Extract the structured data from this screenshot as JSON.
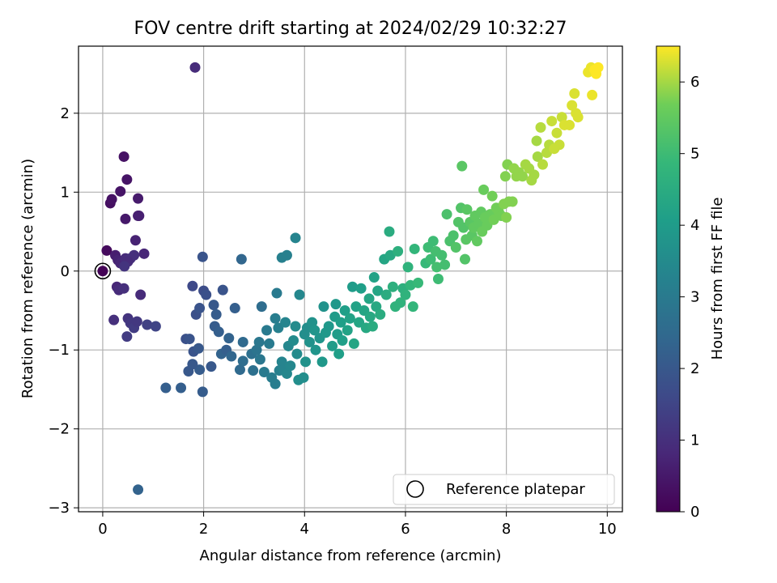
{
  "chart_data": {
    "type": "scatter",
    "title": "FOV centre drift starting at 2024/02/29 10:32:27",
    "xlabel": "Angular distance from reference (arcmin)",
    "ylabel": "Rotation from reference (arcmin)",
    "xlim": [
      -0.48,
      10.3
    ],
    "ylim": [
      -3.05,
      2.85
    ],
    "xticks": [
      0,
      2,
      4,
      6,
      8,
      10
    ],
    "yticks": [
      -3,
      -2,
      -1,
      0,
      1,
      2
    ],
    "grid": true,
    "colormap": "viridis",
    "colorbar": {
      "label": "Hours from first FF file",
      "range": [
        0,
        6.5
      ],
      "ticks": [
        0,
        1,
        2,
        3,
        4,
        5,
        6
      ]
    },
    "legend": {
      "position": "lower-right",
      "entries": [
        "Reference platepar"
      ]
    },
    "reference_point": {
      "x": 0,
      "y": 0
    },
    "points": [
      {
        "x": 0.0,
        "y": 0.0,
        "c": 0.05
      },
      {
        "x": 0.08,
        "y": 0.26,
        "c": 0.2
      },
      {
        "x": 0.15,
        "y": 0.86,
        "c": 0.3
      },
      {
        "x": 0.18,
        "y": 0.91,
        "c": 0.35
      },
      {
        "x": 0.35,
        "y": 1.01,
        "c": 0.4
      },
      {
        "x": 0.42,
        "y": 1.45,
        "c": 0.35
      },
      {
        "x": 0.48,
        "y": 1.16,
        "c": 0.4
      },
      {
        "x": 0.45,
        "y": 0.66,
        "c": 0.5
      },
      {
        "x": 0.7,
        "y": 0.92,
        "c": 0.55
      },
      {
        "x": 0.7,
        "y": 0.7,
        "c": 0.6
      },
      {
        "x": 0.72,
        "y": 0.7,
        "c": 0.65
      },
      {
        "x": 0.65,
        "y": 0.39,
        "c": 0.7
      },
      {
        "x": 0.82,
        "y": 0.22,
        "c": 0.8
      },
      {
        "x": 0.25,
        "y": 0.2,
        "c": 0.6
      },
      {
        "x": 0.3,
        "y": 0.14,
        "c": 0.7
      },
      {
        "x": 0.35,
        "y": 0.1,
        "c": 0.8
      },
      {
        "x": 0.45,
        "y": 0.16,
        "c": 0.9
      },
      {
        "x": 0.55,
        "y": 0.16,
        "c": 1.0
      },
      {
        "x": 0.62,
        "y": 0.2,
        "c": 1.0
      },
      {
        "x": 0.5,
        "y": 0.12,
        "c": 0.9
      },
      {
        "x": 0.43,
        "y": 0.06,
        "c": 1.1
      },
      {
        "x": 0.28,
        "y": -0.2,
        "c": 0.8
      },
      {
        "x": 0.32,
        "y": -0.24,
        "c": 0.9
      },
      {
        "x": 0.42,
        "y": -0.22,
        "c": 1.0
      },
      {
        "x": 0.75,
        "y": -0.3,
        "c": 0.9
      },
      {
        "x": 0.22,
        "y": -0.62,
        "c": 1.0
      },
      {
        "x": 0.5,
        "y": -0.6,
        "c": 1.1
      },
      {
        "x": 0.55,
        "y": -0.66,
        "c": 1.2
      },
      {
        "x": 0.62,
        "y": -0.72,
        "c": 1.3
      },
      {
        "x": 0.68,
        "y": -0.64,
        "c": 1.2
      },
      {
        "x": 0.48,
        "y": -0.83,
        "c": 1.3
      },
      {
        "x": 0.88,
        "y": -0.68,
        "c": 1.4
      },
      {
        "x": 1.05,
        "y": -0.7,
        "c": 1.5
      },
      {
        "x": 1.83,
        "y": 2.58,
        "c": 0.9
      },
      {
        "x": 0.7,
        "y": -2.77,
        "c": 2.3
      },
      {
        "x": 1.25,
        "y": -1.48,
        "c": 2.2
      },
      {
        "x": 1.55,
        "y": -1.48,
        "c": 2.2
      },
      {
        "x": 1.7,
        "y": -1.27,
        "c": 2.0
      },
      {
        "x": 1.65,
        "y": -0.86,
        "c": 1.8
      },
      {
        "x": 1.72,
        "y": -0.86,
        "c": 1.9
      },
      {
        "x": 1.8,
        "y": -1.02,
        "c": 1.9
      },
      {
        "x": 1.9,
        "y": -0.98,
        "c": 2.0
      },
      {
        "x": 1.92,
        "y": -1.25,
        "c": 2.1
      },
      {
        "x": 1.78,
        "y": -1.18,
        "c": 2.0
      },
      {
        "x": 1.85,
        "y": -0.55,
        "c": 1.8
      },
      {
        "x": 1.92,
        "y": -0.47,
        "c": 1.9
      },
      {
        "x": 1.98,
        "y": -1.53,
        "c": 2.1
      },
      {
        "x": 2.0,
        "y": -0.25,
        "c": 1.7
      },
      {
        "x": 1.78,
        "y": -0.19,
        "c": 1.6
      },
      {
        "x": 2.05,
        "y": -0.3,
        "c": 1.8
      },
      {
        "x": 2.15,
        "y": -1.21,
        "c": 2.0
      },
      {
        "x": 2.2,
        "y": -0.43,
        "c": 2.0
      },
      {
        "x": 2.25,
        "y": -0.55,
        "c": 2.1
      },
      {
        "x": 2.22,
        "y": -0.7,
        "c": 2.1
      },
      {
        "x": 2.3,
        "y": -0.77,
        "c": 2.2
      },
      {
        "x": 2.35,
        "y": -1.05,
        "c": 2.3
      },
      {
        "x": 2.45,
        "y": -1.0,
        "c": 2.2
      },
      {
        "x": 2.5,
        "y": -0.85,
        "c": 2.3
      },
      {
        "x": 2.55,
        "y": -1.08,
        "c": 2.4
      },
      {
        "x": 2.62,
        "y": -0.47,
        "c": 2.2
      },
      {
        "x": 1.98,
        "y": 0.18,
        "c": 1.9
      },
      {
        "x": 2.38,
        "y": -0.24,
        "c": 1.9
      },
      {
        "x": 2.75,
        "y": 0.15,
        "c": 2.4
      },
      {
        "x": 2.72,
        "y": -1.25,
        "c": 2.5
      },
      {
        "x": 2.78,
        "y": -1.14,
        "c": 2.6
      },
      {
        "x": 2.78,
        "y": -0.9,
        "c": 2.5
      },
      {
        "x": 2.95,
        "y": -1.05,
        "c": 2.7
      },
      {
        "x": 2.98,
        "y": -1.26,
        "c": 2.7
      },
      {
        "x": 3.05,
        "y": -1.0,
        "c": 2.8
      },
      {
        "x": 3.1,
        "y": -0.9,
        "c": 2.9
      },
      {
        "x": 3.12,
        "y": -1.12,
        "c": 2.9
      },
      {
        "x": 3.15,
        "y": -0.45,
        "c": 2.6
      },
      {
        "x": 3.2,
        "y": -1.28,
        "c": 3.0
      },
      {
        "x": 3.25,
        "y": -0.75,
        "c": 3.0
      },
      {
        "x": 3.3,
        "y": -0.92,
        "c": 3.0
      },
      {
        "x": 3.35,
        "y": -1.35,
        "c": 3.1
      },
      {
        "x": 3.42,
        "y": -1.43,
        "c": 3.1
      },
      {
        "x": 3.42,
        "y": -0.6,
        "c": 3.1
      },
      {
        "x": 3.45,
        "y": -0.28,
        "c": 3.0
      },
      {
        "x": 3.48,
        "y": -0.72,
        "c": 3.2
      },
      {
        "x": 3.5,
        "y": -1.26,
        "c": 3.2
      },
      {
        "x": 3.55,
        "y": -1.15,
        "c": 3.3
      },
      {
        "x": 3.58,
        "y": -1.25,
        "c": 3.3
      },
      {
        "x": 3.62,
        "y": -0.65,
        "c": 3.3
      },
      {
        "x": 3.65,
        "y": -1.3,
        "c": 3.4
      },
      {
        "x": 3.68,
        "y": -0.95,
        "c": 3.4
      },
      {
        "x": 3.72,
        "y": -1.2,
        "c": 3.4
      },
      {
        "x": 3.55,
        "y": 0.17,
        "c": 3.2
      },
      {
        "x": 3.65,
        "y": 0.2,
        "c": 3.2
      },
      {
        "x": 3.82,
        "y": 0.42,
        "c": 3.3
      },
      {
        "x": 3.78,
        "y": -0.88,
        "c": 3.5
      },
      {
        "x": 3.82,
        "y": -0.7,
        "c": 3.5
      },
      {
        "x": 3.85,
        "y": -1.05,
        "c": 3.5
      },
      {
        "x": 3.9,
        "y": -0.3,
        "c": 3.4
      },
      {
        "x": 3.88,
        "y": -1.38,
        "c": 3.6
      },
      {
        "x": 3.98,
        "y": -1.35,
        "c": 3.6
      },
      {
        "x": 4.0,
        "y": -0.8,
        "c": 3.6
      },
      {
        "x": 4.02,
        "y": -1.15,
        "c": 3.7
      },
      {
        "x": 4.05,
        "y": -0.72,
        "c": 3.6
      },
      {
        "x": 4.1,
        "y": -0.9,
        "c": 3.7
      },
      {
        "x": 4.15,
        "y": -0.65,
        "c": 3.7
      },
      {
        "x": 4.2,
        "y": -0.75,
        "c": 3.8
      },
      {
        "x": 4.22,
        "y": -1.0,
        "c": 3.8
      },
      {
        "x": 4.3,
        "y": -0.85,
        "c": 3.8
      },
      {
        "x": 4.35,
        "y": -1.15,
        "c": 3.9
      },
      {
        "x": 4.38,
        "y": -0.45,
        "c": 3.7
      },
      {
        "x": 4.42,
        "y": -0.78,
        "c": 3.9
      },
      {
        "x": 4.48,
        "y": -0.7,
        "c": 3.9
      },
      {
        "x": 4.55,
        "y": -0.95,
        "c": 4.0
      },
      {
        "x": 4.6,
        "y": -0.58,
        "c": 4.0
      },
      {
        "x": 4.62,
        "y": -0.42,
        "c": 3.9
      },
      {
        "x": 4.65,
        "y": -0.8,
        "c": 4.0
      },
      {
        "x": 4.68,
        "y": -1.05,
        "c": 4.1
      },
      {
        "x": 4.72,
        "y": -0.65,
        "c": 4.1
      },
      {
        "x": 4.75,
        "y": -0.88,
        "c": 4.1
      },
      {
        "x": 4.8,
        "y": -0.5,
        "c": 4.1
      },
      {
        "x": 4.85,
        "y": -0.75,
        "c": 4.2
      },
      {
        "x": 4.9,
        "y": -0.6,
        "c": 4.2
      },
      {
        "x": 4.95,
        "y": -0.2,
        "c": 4.0
      },
      {
        "x": 4.98,
        "y": -0.92,
        "c": 4.3
      },
      {
        "x": 5.02,
        "y": -0.45,
        "c": 4.2
      },
      {
        "x": 5.08,
        "y": -0.65,
        "c": 4.3
      },
      {
        "x": 5.12,
        "y": -0.22,
        "c": 4.1
      },
      {
        "x": 5.18,
        "y": -0.5,
        "c": 4.3
      },
      {
        "x": 5.22,
        "y": -0.72,
        "c": 4.4
      },
      {
        "x": 5.28,
        "y": -0.35,
        "c": 4.3
      },
      {
        "x": 5.3,
        "y": -0.58,
        "c": 4.4
      },
      {
        "x": 5.35,
        "y": -0.7,
        "c": 4.5
      },
      {
        "x": 5.38,
        "y": -0.08,
        "c": 4.2
      },
      {
        "x": 5.42,
        "y": -0.45,
        "c": 4.4
      },
      {
        "x": 5.45,
        "y": -0.25,
        "c": 4.3
      },
      {
        "x": 5.5,
        "y": -0.55,
        "c": 4.5
      },
      {
        "x": 5.58,
        "y": 0.15,
        "c": 4.3
      },
      {
        "x": 5.62,
        "y": -0.3,
        "c": 4.5
      },
      {
        "x": 5.7,
        "y": 0.2,
        "c": 4.4
      },
      {
        "x": 5.68,
        "y": 0.5,
        "c": 4.5
      },
      {
        "x": 5.75,
        "y": -0.2,
        "c": 4.6
      },
      {
        "x": 5.8,
        "y": -0.45,
        "c": 4.7
      },
      {
        "x": 5.85,
        "y": 0.25,
        "c": 4.6
      },
      {
        "x": 5.9,
        "y": -0.4,
        "c": 4.7
      },
      {
        "x": 5.95,
        "y": -0.22,
        "c": 4.6
      },
      {
        "x": 6.0,
        "y": -0.3,
        "c": 4.7
      },
      {
        "x": 6.05,
        "y": 0.05,
        "c": 4.7
      },
      {
        "x": 6.1,
        "y": -0.18,
        "c": 4.8
      },
      {
        "x": 6.15,
        "y": -0.45,
        "c": 4.8
      },
      {
        "x": 6.18,
        "y": 0.28,
        "c": 4.8
      },
      {
        "x": 6.25,
        "y": -0.15,
        "c": 4.9
      },
      {
        "x": 6.4,
        "y": 0.1,
        "c": 4.9
      },
      {
        "x": 6.45,
        "y": 0.3,
        "c": 5.0
      },
      {
        "x": 6.5,
        "y": 0.15,
        "c": 5.0
      },
      {
        "x": 6.55,
        "y": 0.38,
        "c": 5.0
      },
      {
        "x": 6.6,
        "y": 0.25,
        "c": 5.1
      },
      {
        "x": 6.62,
        "y": 0.05,
        "c": 5.1
      },
      {
        "x": 6.65,
        "y": -0.1,
        "c": 5.0
      },
      {
        "x": 6.72,
        "y": 0.2,
        "c": 5.1
      },
      {
        "x": 6.78,
        "y": 0.08,
        "c": 5.1
      },
      {
        "x": 6.82,
        "y": 0.72,
        "c": 5.2
      },
      {
        "x": 6.88,
        "y": 0.38,
        "c": 5.2
      },
      {
        "x": 6.95,
        "y": 0.45,
        "c": 5.2
      },
      {
        "x": 7.0,
        "y": 0.3,
        "c": 5.3
      },
      {
        "x": 7.05,
        "y": 0.62,
        "c": 5.3
      },
      {
        "x": 7.1,
        "y": 0.8,
        "c": 5.3
      },
      {
        "x": 7.12,
        "y": 1.33,
        "c": 5.4
      },
      {
        "x": 7.15,
        "y": 0.55,
        "c": 5.3
      },
      {
        "x": 7.18,
        "y": 0.15,
        "c": 5.3
      },
      {
        "x": 7.2,
        "y": 0.4,
        "c": 5.4
      },
      {
        "x": 7.22,
        "y": 0.78,
        "c": 5.4
      },
      {
        "x": 7.28,
        "y": 0.62,
        "c": 5.4
      },
      {
        "x": 7.32,
        "y": 0.45,
        "c": 5.4
      },
      {
        "x": 7.35,
        "y": 0.55,
        "c": 5.5
      },
      {
        "x": 7.38,
        "y": 0.7,
        "c": 5.5
      },
      {
        "x": 7.42,
        "y": 0.38,
        "c": 5.5
      },
      {
        "x": 7.45,
        "y": 0.6,
        "c": 5.5
      },
      {
        "x": 7.5,
        "y": 0.75,
        "c": 5.5
      },
      {
        "x": 7.52,
        "y": 0.5,
        "c": 5.6
      },
      {
        "x": 7.55,
        "y": 1.03,
        "c": 5.6
      },
      {
        "x": 7.58,
        "y": 0.68,
        "c": 5.6
      },
      {
        "x": 7.62,
        "y": 0.58,
        "c": 5.6
      },
      {
        "x": 7.68,
        "y": 0.72,
        "c": 5.6
      },
      {
        "x": 7.72,
        "y": 0.95,
        "c": 5.7
      },
      {
        "x": 7.75,
        "y": 0.65,
        "c": 5.7
      },
      {
        "x": 7.8,
        "y": 0.8,
        "c": 5.7
      },
      {
        "x": 7.85,
        "y": 0.75,
        "c": 5.7
      },
      {
        "x": 7.9,
        "y": 0.7,
        "c": 5.7
      },
      {
        "x": 7.95,
        "y": 0.85,
        "c": 5.8
      },
      {
        "x": 8.0,
        "y": 0.68,
        "c": 5.8
      },
      {
        "x": 7.98,
        "y": 1.2,
        "c": 5.8
      },
      {
        "x": 8.02,
        "y": 1.35,
        "c": 5.8
      },
      {
        "x": 8.05,
        "y": 0.88,
        "c": 5.8
      },
      {
        "x": 8.12,
        "y": 0.88,
        "c": 5.8
      },
      {
        "x": 8.15,
        "y": 1.3,
        "c": 5.9
      },
      {
        "x": 8.2,
        "y": 1.2,
        "c": 5.9
      },
      {
        "x": 8.25,
        "y": 1.25,
        "c": 5.9
      },
      {
        "x": 8.32,
        "y": 1.2,
        "c": 5.9
      },
      {
        "x": 8.38,
        "y": 1.35,
        "c": 6.0
      },
      {
        "x": 8.45,
        "y": 1.3,
        "c": 6.0
      },
      {
        "x": 8.5,
        "y": 1.15,
        "c": 6.0
      },
      {
        "x": 8.55,
        "y": 1.22,
        "c": 6.0
      },
      {
        "x": 8.6,
        "y": 1.65,
        "c": 6.0
      },
      {
        "x": 8.62,
        "y": 1.45,
        "c": 6.0
      },
      {
        "x": 8.68,
        "y": 1.82,
        "c": 6.1
      },
      {
        "x": 8.72,
        "y": 1.35,
        "c": 6.1
      },
      {
        "x": 8.8,
        "y": 1.5,
        "c": 6.1
      },
      {
        "x": 8.85,
        "y": 1.6,
        "c": 6.1
      },
      {
        "x": 8.9,
        "y": 1.9,
        "c": 6.2
      },
      {
        "x": 8.95,
        "y": 1.55,
        "c": 6.2
      },
      {
        "x": 9.0,
        "y": 1.75,
        "c": 6.2
      },
      {
        "x": 9.05,
        "y": 1.6,
        "c": 6.2
      },
      {
        "x": 9.1,
        "y": 1.95,
        "c": 6.2
      },
      {
        "x": 9.15,
        "y": 1.85,
        "c": 6.3
      },
      {
        "x": 9.25,
        "y": 1.85,
        "c": 6.3
      },
      {
        "x": 9.3,
        "y": 2.1,
        "c": 6.3
      },
      {
        "x": 9.35,
        "y": 2.25,
        "c": 6.3
      },
      {
        "x": 9.38,
        "y": 2.0,
        "c": 6.3
      },
      {
        "x": 9.42,
        "y": 1.95,
        "c": 6.3
      },
      {
        "x": 9.62,
        "y": 2.52,
        "c": 6.4
      },
      {
        "x": 9.68,
        "y": 2.58,
        "c": 6.4
      },
      {
        "x": 9.7,
        "y": 2.23,
        "c": 6.4
      },
      {
        "x": 9.75,
        "y": 2.55,
        "c": 6.5
      },
      {
        "x": 9.78,
        "y": 2.5,
        "c": 6.5
      },
      {
        "x": 9.82,
        "y": 2.58,
        "c": 6.5
      }
    ]
  }
}
